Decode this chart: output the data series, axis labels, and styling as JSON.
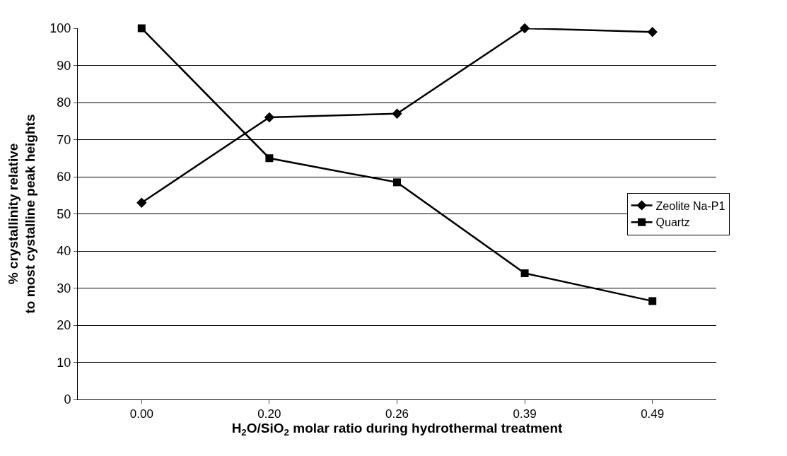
{
  "chart_data": {
    "type": "line",
    "xlabel": "H$_{2}$O/SiO$_{2}$ molar ratio during hydrothermal treatment",
    "ylabel": "% crystallinity relative\nto most cystalline peak heights",
    "categories": [
      "0.00",
      "0.20",
      "0.26",
      "0.39",
      "0.49"
    ],
    "series": [
      {
        "name": "Zeolite Na-P1",
        "color": "#000000",
        "marker": "diamond",
        "values": [
          53,
          76,
          77,
          100,
          99
        ]
      },
      {
        "name": "Quartz",
        "color": "#000000",
        "marker": "square",
        "values": [
          100,
          65,
          58.5,
          34,
          26.5
        ]
      }
    ],
    "ylim": [
      0,
      100
    ],
    "yticks": [
      0,
      10,
      20,
      30,
      40,
      50,
      60,
      70,
      80,
      90,
      100
    ],
    "grid": "y",
    "legend": "right",
    "line_style": "solid"
  }
}
